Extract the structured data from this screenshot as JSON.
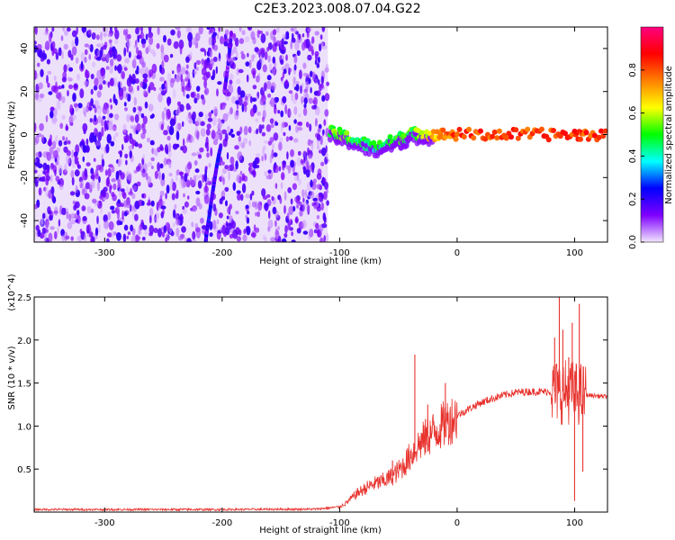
{
  "title": "C2E3.2023.008.07.04.G22",
  "chart_data": [
    {
      "type": "heatmap",
      "xlabel": "Height of straight line (km)",
      "ylabel": "Frequency (Hz)",
      "xlim": [
        -360,
        128
      ],
      "ylim": [
        -50,
        50
      ],
      "xticks": [
        -300,
        -200,
        -100,
        0,
        100
      ],
      "xtick_labels": [
        "-300",
        "-200",
        "-100",
        "0",
        "100"
      ],
      "yticks": [
        -40,
        -20,
        0,
        20,
        40
      ],
      "ytick_labels": [
        "-40",
        "-20",
        "0",
        "20",
        "40"
      ],
      "colorbar": {
        "label": "Normalized spectral amplitude",
        "range": [
          0.0,
          1.0
        ],
        "ticks": [
          0.0,
          0.2,
          0.4,
          0.6,
          0.8
        ],
        "tick_labels": [
          "0.0",
          "0.2",
          "0.4",
          "0.6",
          "0.8"
        ],
        "colors": [
          "#f2e6ff",
          "#7f00ff",
          "#0000ff",
          "#00ffff",
          "#00ff00",
          "#ffff00",
          "#ff8000",
          "#ff0000",
          "#ff0080"
        ]
      },
      "noise_region": {
        "x_range": [
          -360,
          -110
        ],
        "freq_range": [
          -50,
          50
        ],
        "amplitude": 0.1
      },
      "tracks": [
        {
          "x": [
            -214,
            -213,
            -211,
            -209,
            -207,
            -205,
            -203,
            -201
          ],
          "freq": [
            -50,
            -45,
            -38,
            -30,
            -23,
            -16,
            -10,
            -5
          ],
          "amplitude": 0.2
        },
        {
          "x": [
            -198,
            -196,
            -194,
            -192
          ],
          "freq": [
            20,
            28,
            37,
            48
          ],
          "amplitude": 0.15
        },
        {
          "x": [
            -108,
            -100,
            -90,
            -80,
            -70,
            -60,
            -50,
            -45,
            -40,
            -30,
            -20,
            -10,
            0,
            20,
            40,
            60,
            80,
            100,
            110,
            128
          ],
          "freq": [
            1,
            0,
            -2,
            -4,
            -6,
            -4,
            -2,
            -1,
            0,
            1,
            0,
            0,
            0,
            0,
            0,
            0,
            0,
            0,
            0,
            0
          ],
          "amplitude": [
            0.5,
            0.55,
            0.5,
            0.45,
            0.45,
            0.5,
            0.5,
            0.5,
            0.5,
            0.55,
            0.7,
            0.75,
            0.8,
            0.82,
            0.82,
            0.82,
            0.82,
            0.82,
            0.82,
            0.82
          ]
        }
      ]
    },
    {
      "type": "line",
      "xlabel": "Height of straight line (km)",
      "ylabel": "SNR (10 * v/v)",
      "y_multiplier": "(x10^4)",
      "xlim": [
        -360,
        128
      ],
      "ylim": [
        0,
        25000
      ],
      "xticks": [
        -300,
        -200,
        -100,
        0,
        100
      ],
      "xtick_labels": [
        "-300",
        "-200",
        "-100",
        "0",
        "100"
      ],
      "yticks": [
        5000,
        10000,
        15000,
        20000,
        25000
      ],
      "ytick_labels": [
        "0.5",
        "1.0",
        "1.5",
        "2.0",
        "2.5"
      ],
      "color": "#e8332e",
      "series": [
        {
          "x": [
            -360,
            -300,
            -200,
            -120,
            -100,
            -95,
            -90,
            -85,
            -80,
            -75,
            -70,
            -65,
            -60,
            -55,
            -50,
            -45,
            -40,
            -35,
            -30,
            -25,
            -20,
            -15,
            -10,
            -5,
            0,
            10,
            20,
            30,
            40,
            50,
            60,
            70,
            80,
            85,
            90,
            95,
            100,
            105,
            110,
            120,
            128
          ],
          "y": [
            300,
            300,
            300,
            350,
            600,
            1000,
            1600,
            2200,
            2600,
            3000,
            3300,
            3500,
            3800,
            4200,
            4800,
            5500,
            6500,
            7500,
            8200,
            8800,
            9300,
            9800,
            10300,
            10800,
            11200,
            12000,
            12700,
            13200,
            13600,
            13900,
            14000,
            14000,
            14000,
            14000,
            14000,
            14000,
            13800,
            13700,
            13600,
            13500,
            13400
          ]
        }
      ],
      "spikes": [
        {
          "x": -36,
          "y": 18300
        },
        {
          "x": -25,
          "y": 12500
        },
        {
          "x": -10,
          "y": 15000
        },
        {
          "x": -55,
          "y": 6000
        },
        {
          "x": 87,
          "y": 25000
        },
        {
          "x": 83,
          "y": 20300
        },
        {
          "x": 90,
          "y": 21200
        },
        {
          "x": 95,
          "y": 18000
        },
        {
          "x": 100,
          "y": 1300
        },
        {
          "x": 104,
          "y": 24200
        },
        {
          "x": 98,
          "y": 22000
        },
        {
          "x": 107,
          "y": 4700
        }
      ]
    }
  ]
}
